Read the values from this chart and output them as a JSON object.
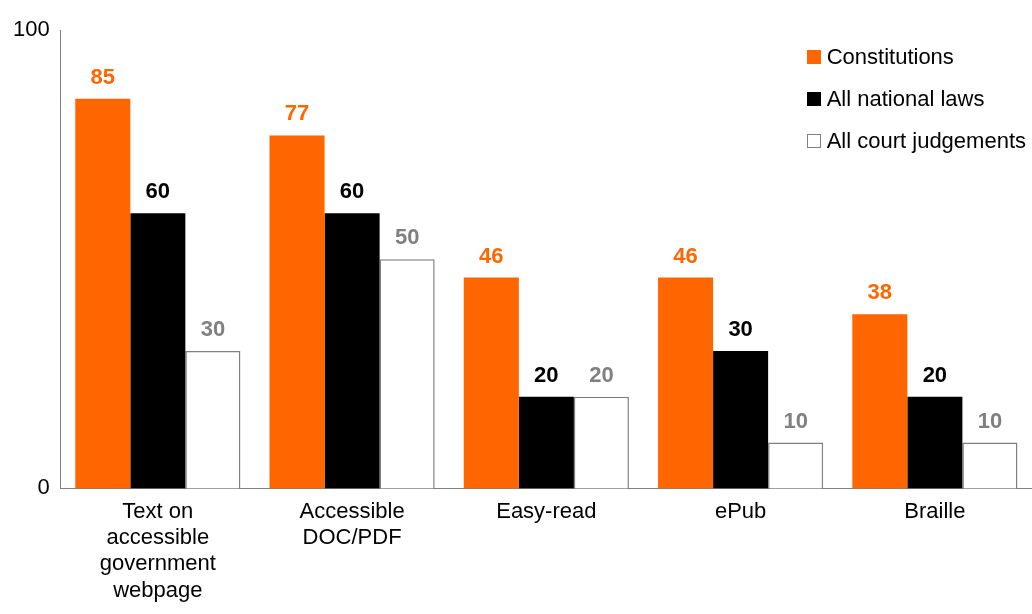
{
  "chart_data": {
    "type": "bar",
    "categories": [
      "Text on accessible government webpage",
      "Accessible DOC/PDF",
      "Easy-read",
      "ePub",
      "Braille"
    ],
    "series": [
      {
        "name": "Constitutions",
        "color": "#ff6600",
        "values": [
          85,
          77,
          46,
          46,
          38
        ]
      },
      {
        "name": "All national laws",
        "color": "#000000",
        "values": [
          60,
          60,
          20,
          30,
          20
        ]
      },
      {
        "name": "All court judgements",
        "color": "#ffffff",
        "values": [
          30,
          50,
          20,
          10,
          10
        ]
      }
    ],
    "ylim": [
      0,
      100
    ],
    "yticks": [
      0,
      100
    ],
    "grid": false,
    "legend": "top right",
    "data_labels": true
  }
}
